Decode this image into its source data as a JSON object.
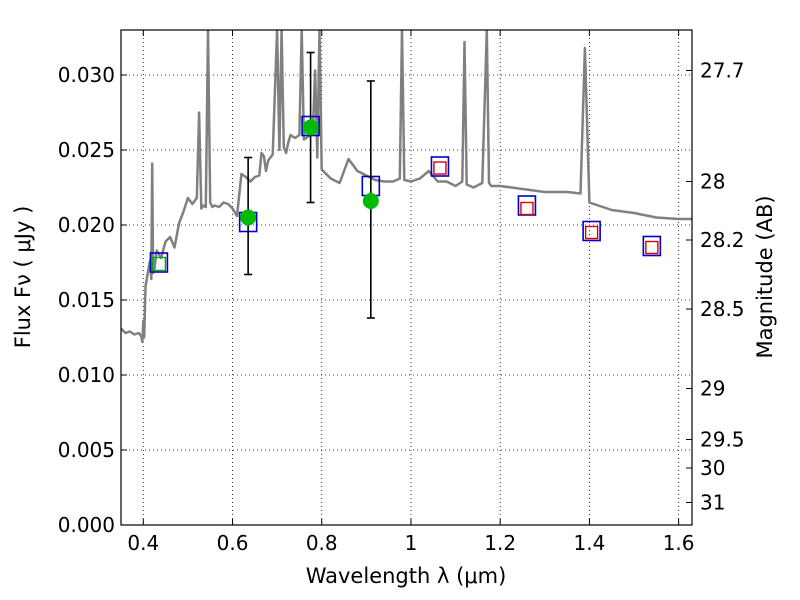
{
  "chart_data": {
    "type": "line",
    "title": "",
    "xlabel": "Wavelength  λ (μm)",
    "ylabel": "Flux  Fν  ( μJy )",
    "y2label": "Magnitude (AB)",
    "xlim": [
      0.35,
      1.63
    ],
    "ylim": [
      0.0,
      0.033
    ],
    "grid": true,
    "x_ticks": [
      0.4,
      0.6,
      0.8,
      1.0,
      1.2,
      1.4,
      1.6
    ],
    "x_tick_labels": [
      "0.4",
      "0.6",
      "0.8",
      "1",
      "1.2",
      "1.4",
      "1.6"
    ],
    "y_ticks": [
      0.0,
      0.005,
      0.01,
      0.015,
      0.02,
      0.025,
      0.03
    ],
    "y_tick_labels": [
      "0.000",
      "0.005",
      "0.010",
      "0.015",
      "0.020",
      "0.025",
      "0.030"
    ],
    "mag_ticks": [
      {
        "label": "27.7",
        "flux": 0.0303
      },
      {
        "label": "28",
        "flux": 0.0229
      },
      {
        "label": "28.2",
        "flux": 0.019
      },
      {
        "label": "28.5",
        "flux": 0.0144
      },
      {
        "label": "29",
        "flux": 0.0091
      },
      {
        "label": "29.5",
        "flux": 0.0057
      },
      {
        "label": "30",
        "flux": 0.0038
      },
      {
        "label": "31",
        "flux": 0.0015
      }
    ],
    "series": [
      {
        "kind": "spectrum",
        "color": "#808080",
        "x": [
          0.35,
          0.36,
          0.37,
          0.38,
          0.39,
          0.395,
          0.398,
          0.4,
          0.402,
          0.405,
          0.41,
          0.415,
          0.418,
          0.42,
          0.422,
          0.425,
          0.43,
          0.44,
          0.45,
          0.46,
          0.47,
          0.48,
          0.49,
          0.5,
          0.51,
          0.52,
          0.525,
          0.53,
          0.535,
          0.54,
          0.545,
          0.55,
          0.555,
          0.56,
          0.57,
          0.58,
          0.59,
          0.6,
          0.61,
          0.62,
          0.63,
          0.64,
          0.65,
          0.66,
          0.665,
          0.67,
          0.675,
          0.68,
          0.69,
          0.7,
          0.705,
          0.71,
          0.715,
          0.72,
          0.725,
          0.73,
          0.74,
          0.75,
          0.755,
          0.76,
          0.77,
          0.78,
          0.785,
          0.79,
          0.795,
          0.8,
          0.82,
          0.84,
          0.86,
          0.88,
          0.9,
          0.92,
          0.94,
          0.96,
          0.975,
          0.98,
          0.985,
          1.0,
          1.02,
          1.04,
          1.06,
          1.08,
          1.1,
          1.115,
          1.12,
          1.125,
          1.14,
          1.16,
          1.17,
          1.175,
          1.18,
          1.2,
          1.25,
          1.3,
          1.35,
          1.38,
          1.39,
          1.4,
          1.45,
          1.5,
          1.55,
          1.6,
          1.63
        ],
        "y": [
          0.0131,
          0.0128,
          0.0129,
          0.0127,
          0.0128,
          0.0126,
          0.0122,
          0.0136,
          0.0125,
          0.0159,
          0.0168,
          0.0176,
          0.0164,
          0.0241,
          0.0168,
          0.0171,
          0.0183,
          0.0178,
          0.0189,
          0.0192,
          0.0185,
          0.0201,
          0.0209,
          0.0218,
          0.0214,
          0.0218,
          0.0275,
          0.0211,
          0.0213,
          0.0212,
          0.033,
          0.0215,
          0.0212,
          0.0213,
          0.0212,
          0.0215,
          0.0214,
          0.0211,
          0.0206,
          0.0234,
          0.0232,
          0.0229,
          0.0232,
          0.0233,
          0.0248,
          0.0246,
          0.0236,
          0.0243,
          0.0247,
          0.033,
          0.025,
          0.033,
          0.0252,
          0.0248,
          0.0255,
          0.026,
          0.0258,
          0.026,
          0.033,
          0.0257,
          0.0259,
          0.0261,
          0.0303,
          0.0245,
          0.033,
          0.0237,
          0.0231,
          0.0228,
          0.0244,
          0.0236,
          0.0233,
          0.023,
          0.0229,
          0.0229,
          0.0231,
          0.033,
          0.023,
          0.0229,
          0.0231,
          0.0236,
          0.0229,
          0.0229,
          0.0226,
          0.0229,
          0.0322,
          0.0227,
          0.0225,
          0.0228,
          0.033,
          0.0228,
          0.0226,
          0.0226,
          0.0224,
          0.0222,
          0.0222,
          0.0221,
          0.0318,
          0.0215,
          0.021,
          0.0208,
          0.0205,
          0.0204,
          0.0204
        ]
      },
      {
        "kind": "observed",
        "color": "#00bb00",
        "x": [
          0.635,
          0.775,
          0.91
        ],
        "y": [
          0.0205,
          0.0265,
          0.0216
        ],
        "yerr_low": [
          0.0167,
          0.0215,
          0.0138
        ],
        "yerr_high": [
          0.0245,
          0.0315,
          0.0296
        ]
      },
      {
        "kind": "model-bands-blue",
        "color": "#0000cc",
        "x": [
          0.435,
          0.635,
          0.775,
          0.91,
          1.065,
          1.26,
          1.405,
          1.54
        ],
        "y": [
          0.0175,
          0.0202,
          0.0266,
          0.0226,
          0.0239,
          0.0213,
          0.0196,
          0.0186
        ]
      },
      {
        "kind": "model-bands-green",
        "color": "#00aa00",
        "x": [
          0.435
        ],
        "y": [
          0.0174
        ]
      },
      {
        "kind": "model-bands-red",
        "color": "#dd0000",
        "x": [
          1.065,
          1.26,
          1.405,
          1.54
        ],
        "y": [
          0.0238,
          0.0211,
          0.0195,
          0.0185
        ]
      }
    ]
  }
}
